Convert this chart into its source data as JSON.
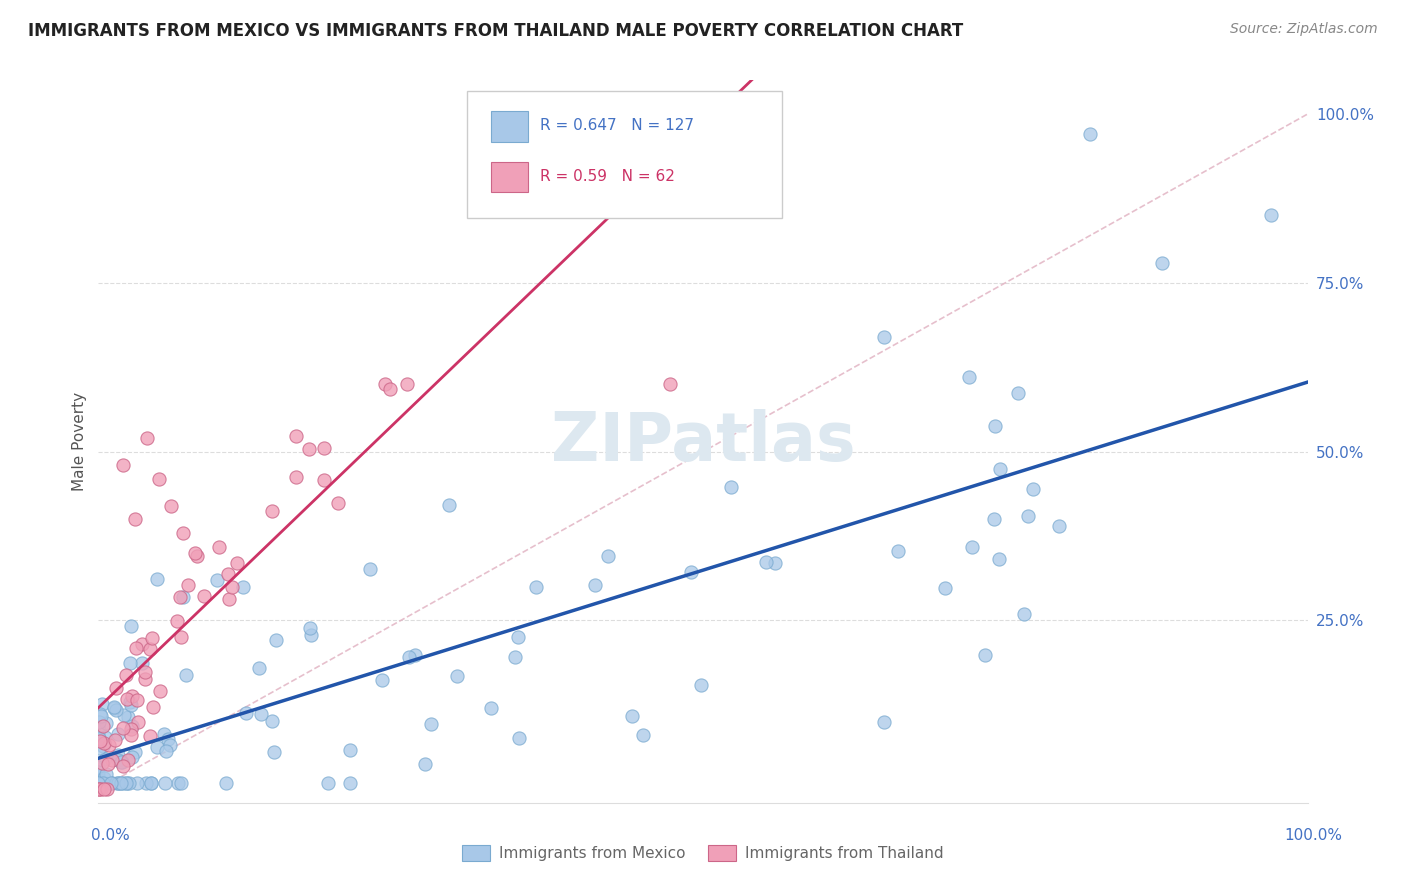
{
  "title": "IMMIGRANTS FROM MEXICO VS IMMIGRANTS FROM THAILAND MALE POVERTY CORRELATION CHART",
  "source": "Source: ZipAtlas.com",
  "ylabel": "Male Poverty",
  "mexico_R": 0.647,
  "mexico_N": 127,
  "thailand_R": 0.59,
  "thailand_N": 62,
  "mexico_color": "#a8c8e8",
  "mexico_line_color": "#2255aa",
  "thailand_color": "#f0a0b8",
  "thailand_line_color": "#cc3366",
  "diag_color": "#e0b0c0",
  "background_color": "#ffffff",
  "grid_color": "#dddddd",
  "ytick_color": "#4472c4",
  "xtick_label_color": "#4472c4",
  "watermark_text": "ZIPatlas",
  "watermark_color": "#dde8f0",
  "legend_border_color": "#cccccc",
  "mexico_legend_text_color": "#4472c4",
  "thailand_legend_text_color": "#cc3366",
  "bottom_legend_text_color": "#666666",
  "source_color": "#888888",
  "ylabel_color": "#555555"
}
